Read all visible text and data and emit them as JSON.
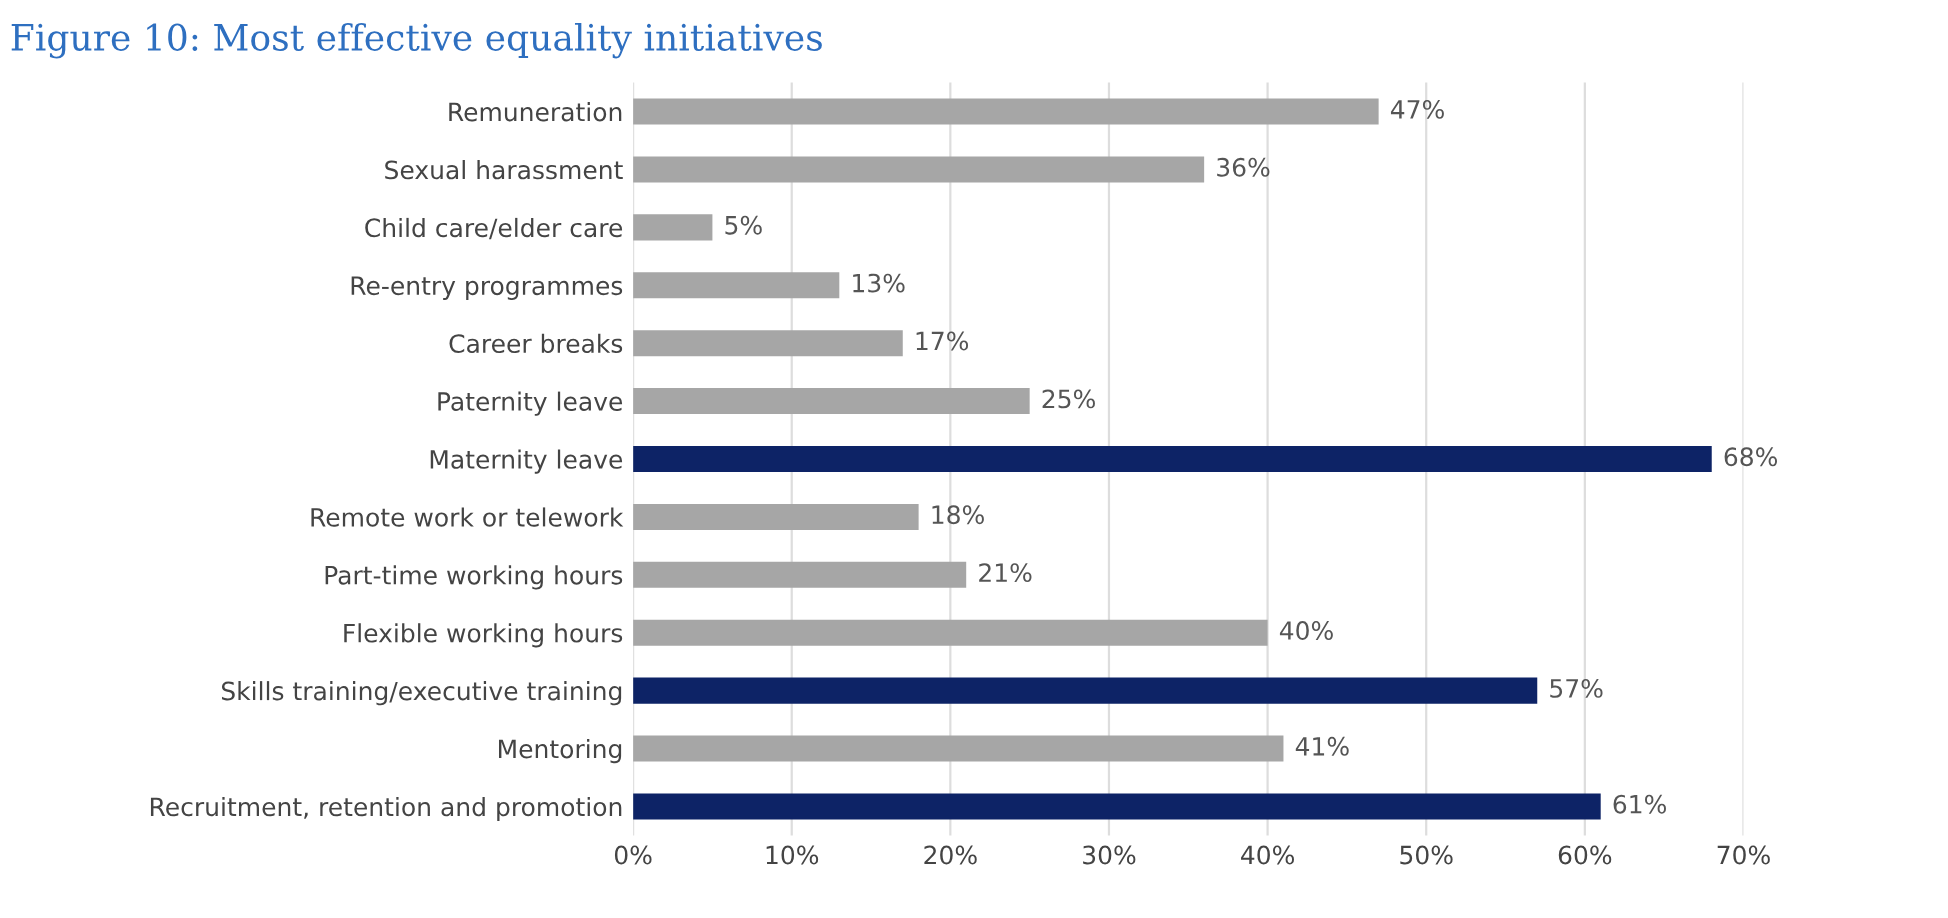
{
  "chart_data": {
    "type": "bar",
    "orientation": "horizontal",
    "title": "Figure 10: Most effective equality initiatives",
    "categories": [
      "Remuneration",
      "Sexual harassment",
      "Child care/elder care",
      "Re-entry programmes",
      "Career breaks",
      "Paternity leave",
      "Maternity leave",
      "Remote work or telework",
      "Part-time working hours",
      "Flexible working hours",
      "Skills training/executive training",
      "Mentoring",
      "Recruitment, retention and promotion"
    ],
    "values": [
      47,
      36,
      5,
      13,
      17,
      25,
      68,
      18,
      21,
      40,
      57,
      41,
      61
    ],
    "colors": [
      "#a6a6a6",
      "#a6a6a6",
      "#a6a6a6",
      "#a6a6a6",
      "#a6a6a6",
      "#a6a6a6",
      "#0d2366",
      "#a6a6a6",
      "#a6a6a6",
      "#a6a6a6",
      "#0d2366",
      "#a6a6a6",
      "#0d2366"
    ],
    "value_labels": [
      "47%",
      "36%",
      "5%",
      "13%",
      "17%",
      "25%",
      "68%",
      "18%",
      "21%",
      "40%",
      "57%",
      "41%",
      "61%"
    ],
    "xlim": [
      0,
      70
    ],
    "xticks": [
      {
        "value": 0,
        "label": "0%"
      },
      {
        "value": 10,
        "label": "10%"
      },
      {
        "value": 20,
        "label": "20%"
      },
      {
        "value": 30,
        "label": "30%"
      },
      {
        "value": 40,
        "label": "40%"
      },
      {
        "value": 50,
        "label": "50%"
      },
      {
        "value": 60,
        "label": "60%"
      },
      {
        "value": 70,
        "label": "70%"
      }
    ],
    "grid": "x"
  }
}
